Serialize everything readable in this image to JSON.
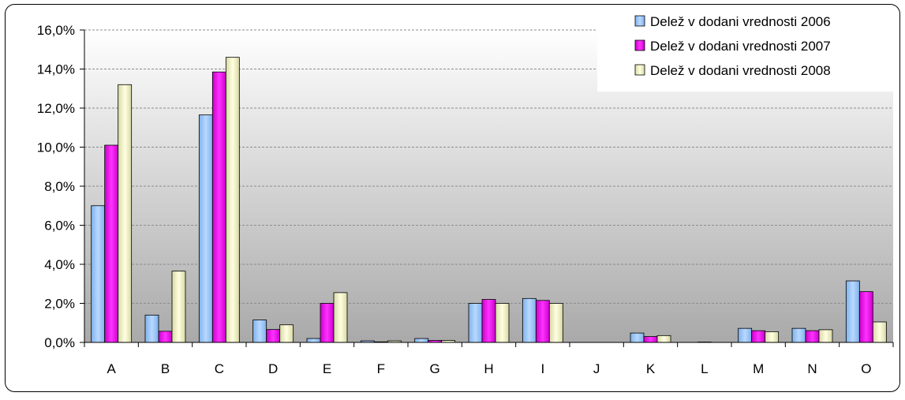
{
  "chart_data": {
    "type": "bar",
    "categories": [
      "A",
      "B",
      "C",
      "D",
      "E",
      "F",
      "G",
      "H",
      "I",
      "J",
      "K",
      "L",
      "M",
      "N",
      "O"
    ],
    "series": [
      {
        "name": "Delež v dodani vrednosti 2006",
        "color": "#99ccff",
        "values": [
          7.0,
          1.4,
          11.65,
          1.15,
          0.2,
          0.08,
          0.2,
          2.0,
          2.25,
          0.0,
          0.48,
          0.0,
          0.72,
          0.72,
          3.15
        ]
      },
      {
        "name": "Delež v dodani vrednosti 2007",
        "color": "#ff00ff",
        "values": [
          10.1,
          0.57,
          13.85,
          0.66,
          2.0,
          0.03,
          0.1,
          2.2,
          2.15,
          0.0,
          0.3,
          0.02,
          0.6,
          0.6,
          2.6
        ]
      },
      {
        "name": "Delež v dodani vrednosti 2008",
        "color": "#ffffcc",
        "values": [
          13.2,
          3.65,
          14.6,
          0.9,
          2.55,
          0.08,
          0.1,
          2.0,
          2.0,
          0.0,
          0.35,
          0.0,
          0.55,
          0.65,
          1.05
        ]
      }
    ],
    "y_ticks": [
      "0,0%",
      "2,0%",
      "4,0%",
      "6,0%",
      "8,0%",
      "10,0%",
      "12,0%",
      "14,0%",
      "16,0%"
    ],
    "ylim": [
      0,
      16
    ],
    "y_step": 2,
    "grid": true,
    "legend_position": "top-right",
    "title": "",
    "xlabel": "",
    "ylabel": ""
  }
}
